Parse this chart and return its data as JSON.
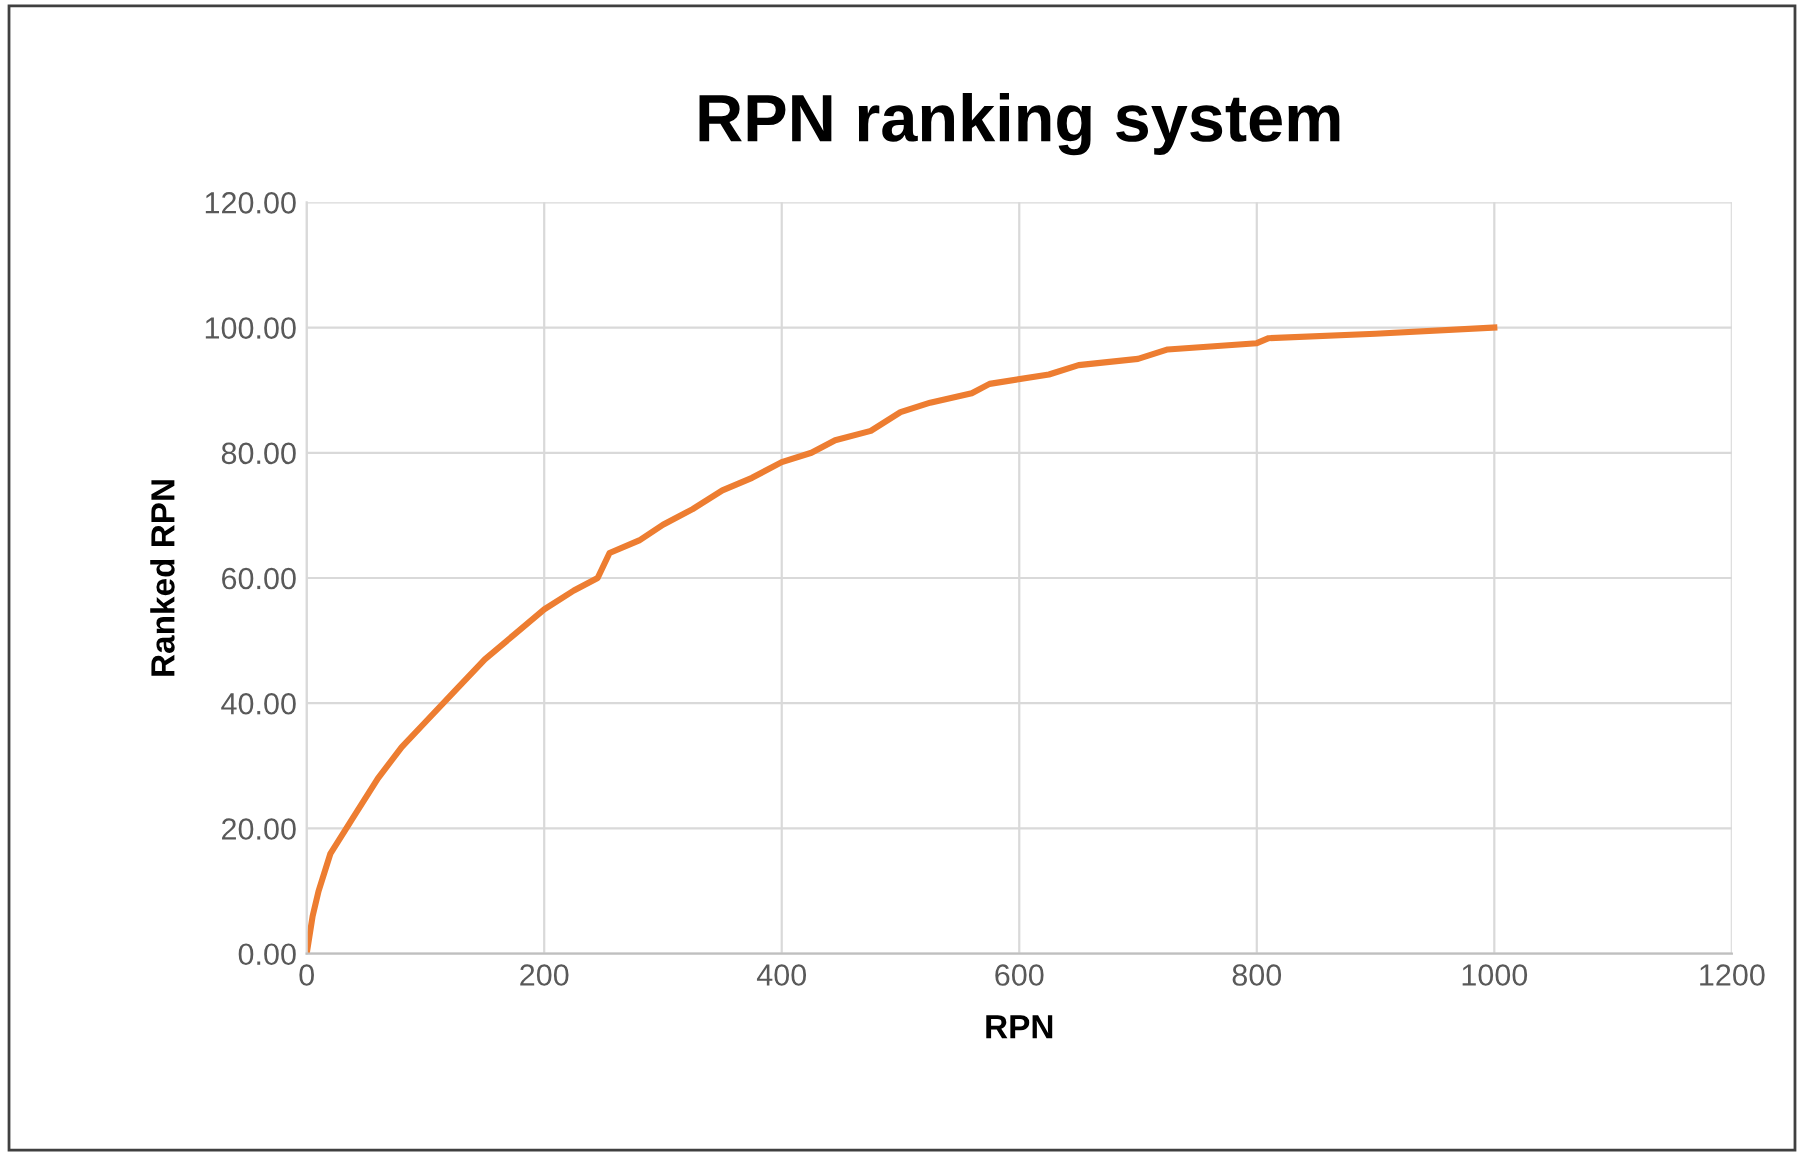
{
  "chart_data": {
    "type": "line",
    "title": "RPN ranking system",
    "xlabel": "RPN",
    "ylabel": "Ranked RPN",
    "x": [
      0,
      5,
      10,
      20,
      40,
      60,
      80,
      100,
      125,
      150,
      175,
      200,
      225,
      245,
      255,
      280,
      300,
      325,
      350,
      375,
      400,
      425,
      445,
      475,
      500,
      525,
      560,
      575,
      625,
      650,
      700,
      725,
      800,
      810,
      900,
      1000
    ],
    "series": [
      {
        "color": "#ed7d31",
        "values": [
          0,
          6,
          10,
          16,
          22,
          28,
          33,
          37,
          42,
          47,
          51,
          55,
          58,
          60,
          64,
          66,
          68.5,
          71,
          74,
          76,
          78.5,
          80,
          82,
          83.5,
          86.5,
          88,
          89.5,
          91,
          92.5,
          94,
          95,
          96.5,
          97.5,
          98.3,
          99,
          100
        ]
      }
    ],
    "xlim": [
      0,
      1200
    ],
    "xticks": [
      0,
      200,
      400,
      600,
      800,
      1000,
      1200
    ],
    "ylim": [
      0,
      120
    ],
    "yticks": [
      {
        "value": 0,
        "label": "0.00"
      },
      {
        "value": 20,
        "label": "20.00"
      },
      {
        "value": 40,
        "label": "40.00"
      },
      {
        "value": 60,
        "label": "60.00"
      },
      {
        "value": 80,
        "label": "80.00"
      },
      {
        "value": 100,
        "label": "100.00"
      },
      {
        "value": 120,
        "label": "120.00"
      }
    ],
    "grid": true,
    "marker": "none",
    "line_style": "solid"
  }
}
